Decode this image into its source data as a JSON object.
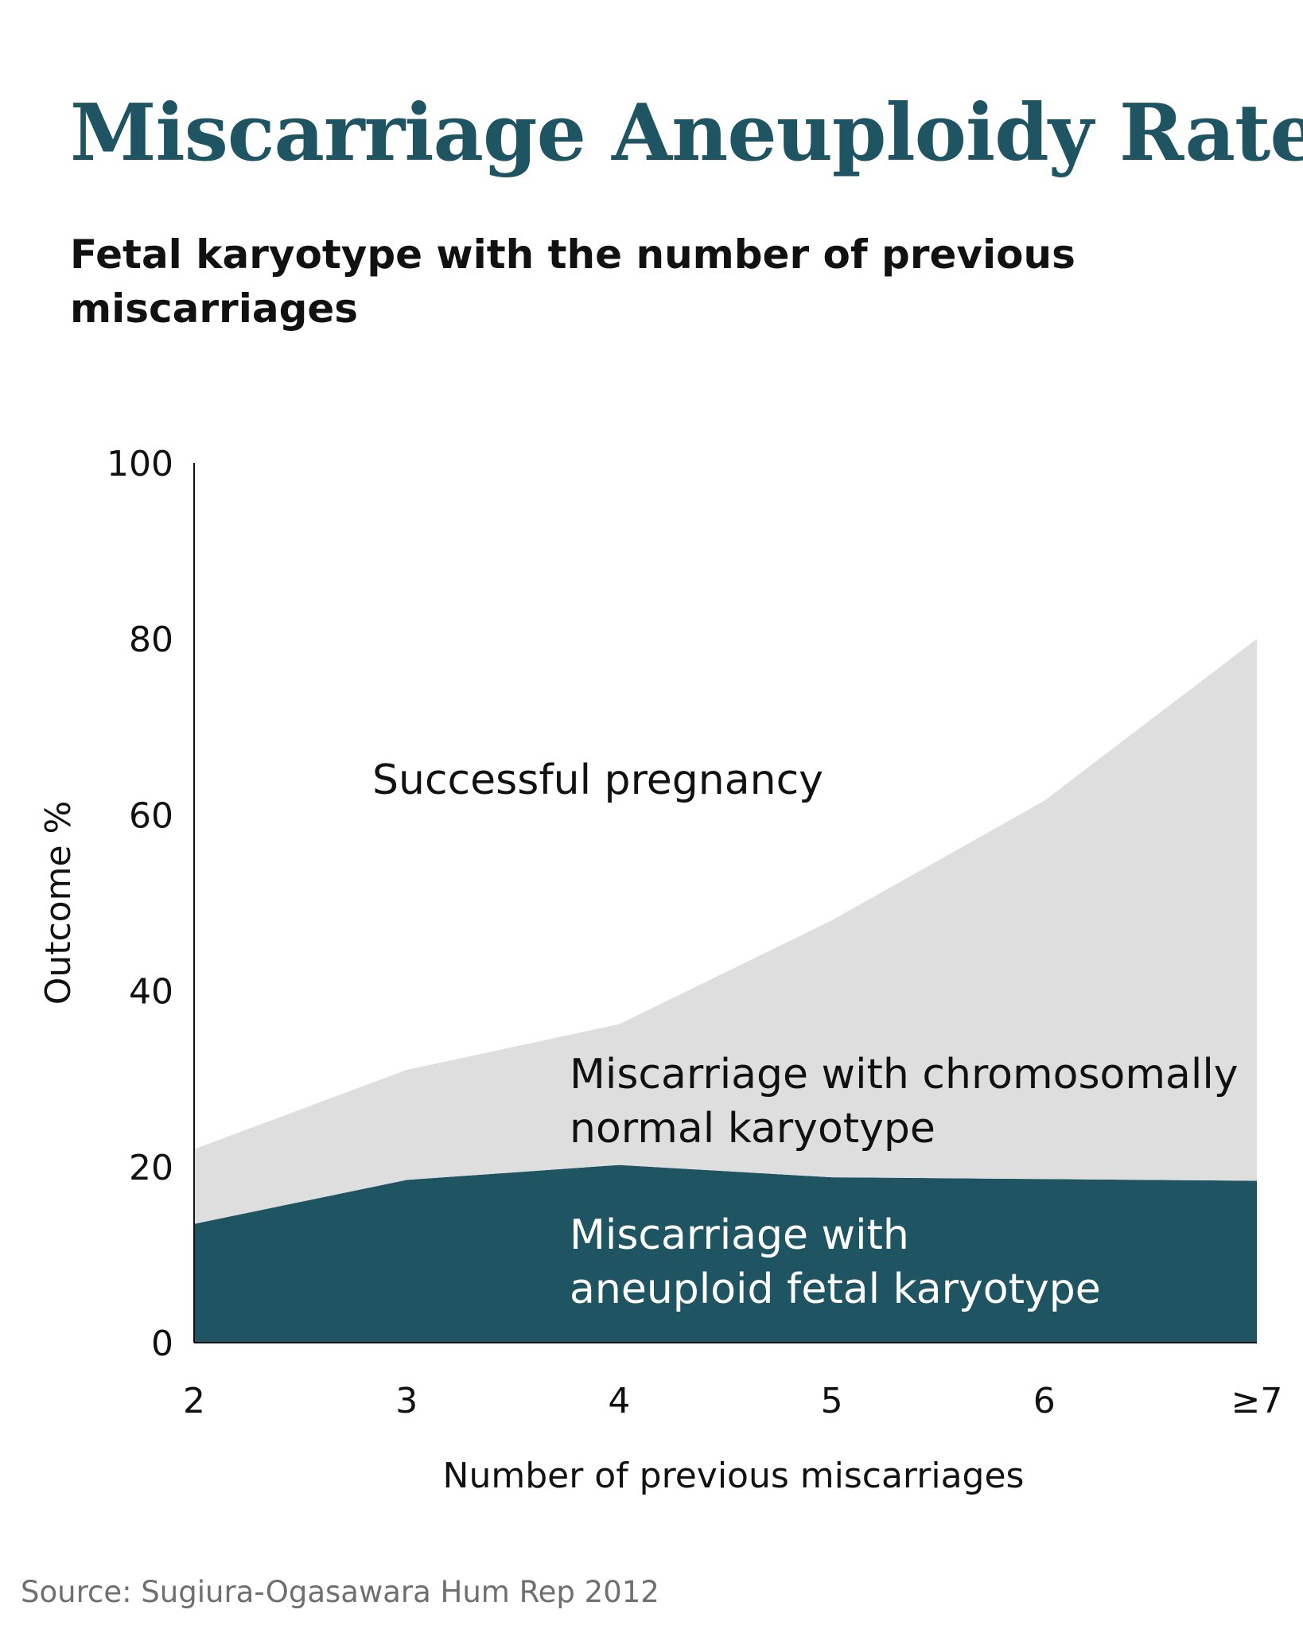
{
  "title": "Miscarriage Aneuploidy Rates",
  "subtitle": "Fetal karyotype with the number of previous miscarriages",
  "source": "Source: Sugiura-Ogasawara Hum Rep 2012",
  "chart_data": {
    "type": "area",
    "stacked": true,
    "categories": [
      "2",
      "3",
      "4",
      "5",
      "6",
      "≥7"
    ],
    "xlabel": "Number of previous miscarriages",
    "ylabel": "Outcome %",
    "ylim": [
      0,
      100
    ],
    "yticks": [
      0,
      20,
      40,
      60,
      80,
      100
    ],
    "grid": false,
    "series": [
      {
        "name": "Miscarriage with aneuploid fetal karyotype",
        "values": [
          13.5,
          18.5,
          20.2,
          18.8,
          18.6,
          18.4
        ],
        "color": "#1f5563"
      },
      {
        "name": "Miscarriage with chromosomally normal karyotype",
        "values": [
          8.5,
          12.5,
          16,
          29.2,
          43,
          61.6
        ],
        "color": "#dedede"
      },
      {
        "name": "Successful pregnancy",
        "color": "#ffffff"
      }
    ],
    "region_labels": [
      {
        "lines": [
          "Successful pregnancy"
        ],
        "color": "#111111"
      },
      {
        "lines": [
          "Miscarriage with chromosomally",
          "normal karyotype"
        ],
        "color": "#111111"
      },
      {
        "lines": [
          "Miscarriage with",
          "aneuploid fetal karyotype"
        ],
        "color": "#ffffff"
      }
    ]
  }
}
